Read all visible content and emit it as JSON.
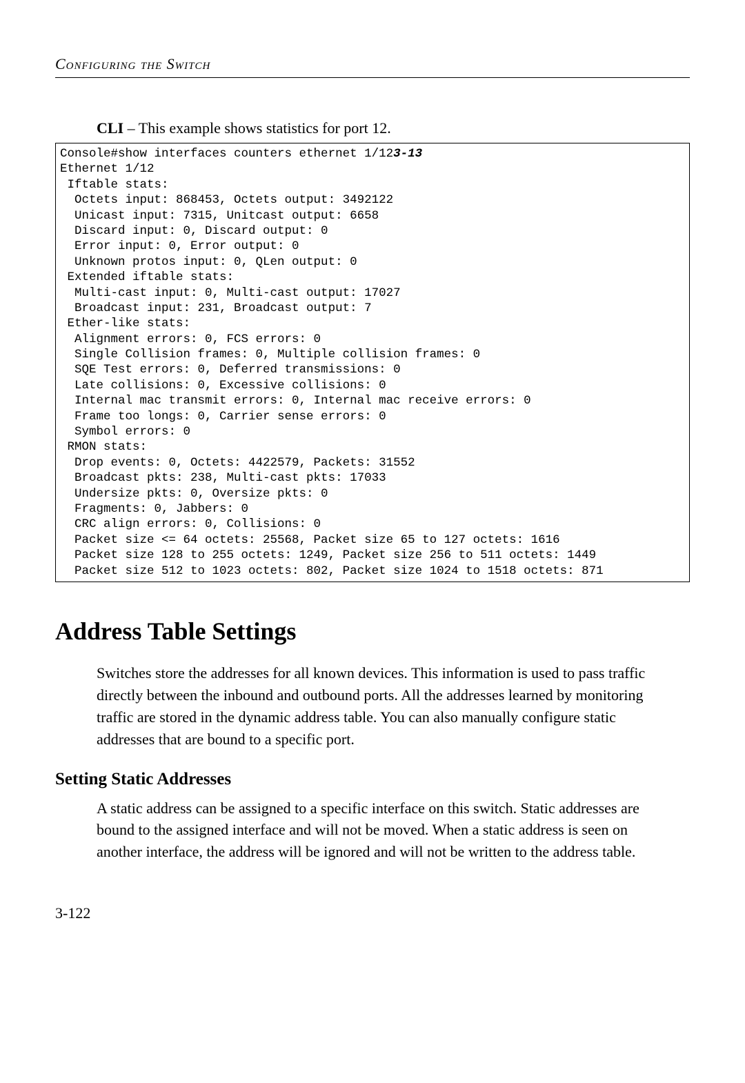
{
  "header": {
    "running_title": "Configuring the Switch"
  },
  "cli_example": {
    "label": "CLI",
    "caption": " – This example shows statistics for port 12.",
    "ref_suffix": "3-13",
    "lines": [
      "Console#show interfaces counters ethernet 1/12",
      "Ethernet 1/12",
      " Iftable stats:",
      "  Octets input: 868453, Octets output: 3492122",
      "  Unicast input: 7315, Unitcast output: 6658",
      "  Discard input: 0, Discard output: 0",
      "  Error input: 0, Error output: 0",
      "  Unknown protos input: 0, QLen output: 0",
      " Extended iftable stats:",
      "  Multi-cast input: 0, Multi-cast output: 17027",
      "  Broadcast input: 231, Broadcast output: 7",
      " Ether-like stats:",
      "  Alignment errors: 0, FCS errors: 0",
      "  Single Collision frames: 0, Multiple collision frames: 0",
      "  SQE Test errors: 0, Deferred transmissions: 0",
      "  Late collisions: 0, Excessive collisions: 0",
      "  Internal mac transmit errors: 0, Internal mac receive errors: 0",
      "  Frame too longs: 0, Carrier sense errors: 0",
      "  Symbol errors: 0",
      " RMON stats:",
      "  Drop events: 0, Octets: 4422579, Packets: 31552",
      "  Broadcast pkts: 238, Multi-cast pkts: 17033",
      "  Undersize pkts: 0, Oversize pkts: 0",
      "  Fragments: 0, Jabbers: 0",
      "  CRC align errors: 0, Collisions: 0",
      "  Packet size <= 64 octets: 25568, Packet size 65 to 127 octets: 1616",
      "  Packet size 128 to 255 octets: 1249, Packet size 256 to 511 octets: 1449",
      "  Packet size 512 to 1023 octets: 802, Packet size 1024 to 1518 octets: 871"
    ]
  },
  "section": {
    "title": "Address Table Settings",
    "paragraph": "Switches store the addresses for all known devices. This information is used to pass traffic directly between the inbound and outbound ports. All the addresses learned by monitoring traffic are stored in the dynamic address table. You can also manually configure static addresses that are bound to a specific port."
  },
  "subsection": {
    "title": "Setting Static Addresses",
    "paragraph": "A static address can be assigned to a specific interface on this switch. Static addresses are bound to the assigned interface and will not be moved. When a static address is seen on another interface, the address will be ignored and will not be written to the address table."
  },
  "footer": {
    "page_number": "3-122"
  }
}
